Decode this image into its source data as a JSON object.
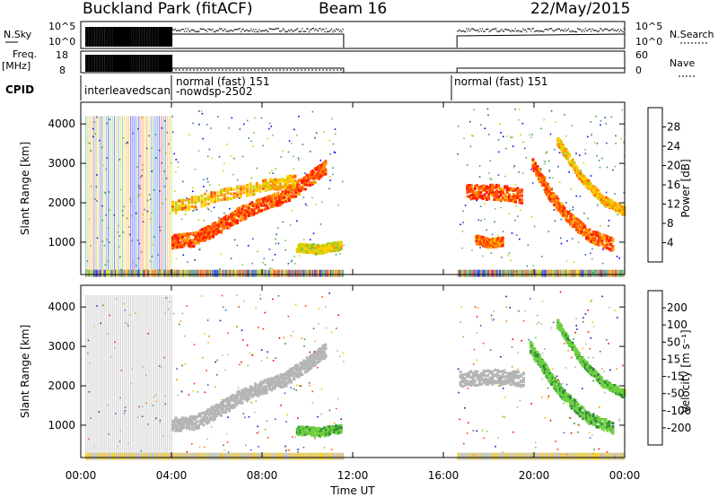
{
  "header": {
    "title": "Buckland Park (fitACF)",
    "beam": "Beam 16",
    "date": "22/May/2015"
  },
  "panels": {
    "nsky": {
      "label": "N.Sky",
      "ticks": [
        "10^5",
        "10^0"
      ],
      "right_label": "N.Search",
      "right_ticks": [
        "10^5",
        "10^0"
      ]
    },
    "freq": {
      "label_line1": "Freq.",
      "label_line2": "[MHz]",
      "ticks": [
        "18",
        "8"
      ],
      "right_label": "Nave",
      "right_ticks": [
        "60",
        "0"
      ]
    },
    "cpid": {
      "label": "CPID",
      "segments": [
        "interleavedscan",
        "normal (fast) 151",
        "-nowdsp-2502",
        "normal (fast) 151"
      ]
    }
  },
  "colors": {
    "power_scale": [
      "#0000ff",
      "#2050c0",
      "#3c7fa0",
      "#3a9a6a",
      "#7bc63e",
      "#c8d200",
      "#ffd000",
      "#ff9a00",
      "#ff5a00",
      "#ff1a00"
    ],
    "velocity_scale": [
      "#1010c0",
      "#3060d0",
      "#2f8a3a",
      "#6fd040",
      "#b5b5b5",
      "#b5b5b5",
      "#f0c000",
      "#ff8c00",
      "#ff4000",
      "#ee0000"
    ]
  },
  "chart_data": [
    {
      "type": "heatmap",
      "title": "Power",
      "ylabel": "Slant Range [km]",
      "xlabel": "Time UT",
      "x_ticks": [
        "00:00",
        "04:00",
        "08:00",
        "12:00",
        "16:00",
        "20:00",
        "00:00"
      ],
      "x_hours": [
        0,
        4,
        8,
        12,
        16,
        20,
        24
      ],
      "y_ticks": [
        1000,
        2000,
        3000,
        4000
      ],
      "ylim": [
        180,
        4550
      ],
      "colorbar": {
        "label": "Power [dB]",
        "ticks": [
          "28",
          "24",
          "20",
          "16",
          "12",
          "8",
          "4"
        ],
        "range": [
          0,
          30
        ]
      },
      "scatter_regions": [
        {
          "t0": 0.2,
          "t1": 4.0,
          "r0": 300,
          "r1": 4200,
          "level": 0.55
        },
        {
          "t0": 4.0,
          "t1": 11.6,
          "r0": 200,
          "r1": 4400,
          "level": 0.45
        },
        {
          "t0": 16.6,
          "t1": 24.0,
          "r0": 200,
          "r1": 4400,
          "level": 0.5
        }
      ],
      "bands": [
        {
          "path_t": [
            4.0,
            5.0,
            6.0,
            7.0,
            8.0,
            9.0,
            10.0,
            10.8
          ],
          "path_r": [
            1050,
            1100,
            1400,
            1750,
            2000,
            2200,
            2600,
            2950
          ],
          "width": 350,
          "level": 0.9
        },
        {
          "path_t": [
            4.0,
            6.0,
            8.0,
            9.5
          ],
          "path_r": [
            1900,
            2200,
            2450,
            2600
          ],
          "width": 300,
          "level": 0.7
        },
        {
          "path_t": [
            9.5,
            10.5,
            11.5
          ],
          "path_r": [
            900,
            850,
            950
          ],
          "width": 220,
          "level": 0.6
        },
        {
          "path_t": [
            17.0,
            18.2,
            19.5
          ],
          "path_r": [
            2300,
            2300,
            2200
          ],
          "width": 380,
          "level": 0.92
        },
        {
          "path_t": [
            17.4,
            18.0,
            18.6
          ],
          "path_r": [
            1100,
            1000,
            1050
          ],
          "width": 220,
          "level": 0.85
        },
        {
          "path_t": [
            19.9,
            20.6,
            21.4,
            22.4,
            23.5
          ],
          "path_r": [
            3000,
            2300,
            1700,
            1200,
            950
          ],
          "width": 320,
          "level": 0.88
        },
        {
          "path_t": [
            21.0,
            22.0,
            23.0,
            24.0
          ],
          "path_r": [
            3600,
            2700,
            2100,
            1800
          ],
          "width": 220,
          "level": 0.7
        }
      ]
    },
    {
      "type": "heatmap",
      "title": "Velocity",
      "ylabel": "Slant Range [km]",
      "xlabel": "Time UT",
      "x_ticks": [
        "00:00",
        "04:00",
        "08:00",
        "12:00",
        "16:00",
        "20:00",
        "00:00"
      ],
      "x_hours": [
        0,
        4,
        8,
        12,
        16,
        20,
        24
      ],
      "y_ticks": [
        1000,
        2000,
        3000,
        4000
      ],
      "ylim": [
        180,
        4550
      ],
      "colorbar": {
        "label": "Velocity [m s⁻¹]",
        "ticks": [
          "200",
          "100",
          "50",
          "15",
          "-15",
          "-50",
          "-100",
          "-200"
        ],
        "range": [
          -250,
          250
        ]
      },
      "scatter_regions": [
        {
          "t0": 0.2,
          "t1": 4.0,
          "r0": 300,
          "r1": 4300,
          "level": 0.3
        },
        {
          "t0": 4.0,
          "t1": 11.6,
          "r0": 200,
          "r1": 4400,
          "level": 0.4
        },
        {
          "t0": 16.6,
          "t1": 24.0,
          "r0": 200,
          "r1": 4400,
          "level": 0.4
        }
      ],
      "bands": [
        {
          "path_t": [
            4.0,
            5.0,
            6.0,
            7.0,
            8.0,
            9.0,
            10.0,
            10.8
          ],
          "path_r": [
            1050,
            1100,
            1400,
            1750,
            2000,
            2200,
            2600,
            2950
          ],
          "width": 350,
          "level": 0.0
        },
        {
          "path_t": [
            9.5,
            10.5,
            11.5
          ],
          "path_r": [
            900,
            850,
            950
          ],
          "width": 220,
          "level": 50
        },
        {
          "path_t": [
            16.7,
            18.0,
            19.6
          ],
          "path_r": [
            2200,
            2250,
            2200
          ],
          "width": 380,
          "level": 0.0
        },
        {
          "path_t": [
            19.8,
            20.6,
            21.4,
            22.4,
            23.5
          ],
          "path_r": [
            3000,
            2300,
            1700,
            1200,
            950
          ],
          "width": 300,
          "level": 60
        },
        {
          "path_t": [
            21.0,
            22.0,
            23.0,
            24.0
          ],
          "path_r": [
            3600,
            2700,
            2100,
            1800
          ],
          "width": 200,
          "level": 40
        }
      ]
    }
  ]
}
